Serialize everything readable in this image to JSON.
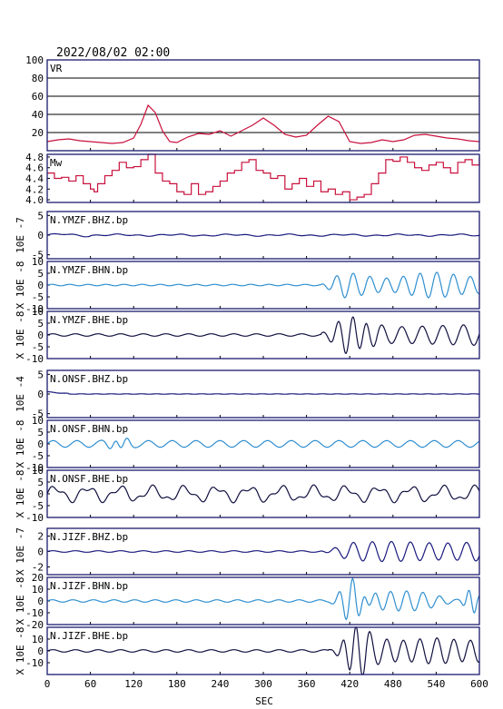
{
  "header": {
    "datetime": "2022/08/02 02:00"
  },
  "colors": {
    "vr": "#c8103c",
    "mw": "#c8103c",
    "bhz": "#1a1a7e",
    "bhn": "#2f8fd0",
    "bhe": "#101040",
    "grid": "#000000"
  },
  "chart_data": {
    "type": "line",
    "xlabel": "SEC",
    "xlim": [
      0,
      600
    ],
    "xticks": [
      0,
      60,
      120,
      180,
      240,
      300,
      360,
      420,
      480,
      540,
      600
    ],
    "panels": [
      {
        "id": "vr",
        "label": "VR",
        "ylabel": "",
        "ylim": [
          0,
          100
        ],
        "yticks": [
          20,
          40,
          60,
          80,
          100
        ],
        "grid": true,
        "color_key": "vr",
        "x": [
          0,
          15,
          30,
          45,
          60,
          75,
          90,
          105,
          120,
          130,
          140,
          150,
          160,
          170,
          180,
          195,
          210,
          225,
          240,
          255,
          270,
          285,
          300,
          315,
          330,
          345,
          360,
          375,
          390,
          405,
          420,
          435,
          450,
          465,
          480,
          495,
          510,
          525,
          540,
          555,
          570,
          585,
          600
        ],
        "y": [
          10,
          12,
          13,
          11,
          10,
          9,
          8,
          9,
          14,
          29,
          50,
          42,
          22,
          10,
          9,
          15,
          19,
          18,
          22,
          16,
          22,
          28,
          36,
          28,
          18,
          15,
          17,
          28,
          38,
          32,
          10,
          8,
          9,
          12,
          10,
          12,
          17,
          18,
          16,
          14,
          13,
          11,
          10
        ]
      },
      {
        "id": "mw",
        "label": "Mw",
        "ylabel": "",
        "ylim": [
          3.95,
          4.85
        ],
        "yticks": [
          4.0,
          4.2,
          4.4,
          4.6,
          4.8
        ],
        "grid": false,
        "color_key": "mw",
        "x": [
          0,
          10,
          20,
          30,
          40,
          50,
          60,
          65,
          70,
          80,
          90,
          100,
          110,
          120,
          130,
          140,
          150,
          160,
          170,
          180,
          190,
          200,
          210,
          220,
          230,
          240,
          250,
          260,
          270,
          280,
          290,
          300,
          310,
          320,
          330,
          340,
          350,
          360,
          370,
          380,
          390,
          400,
          410,
          420,
          430,
          440,
          450,
          460,
          470,
          480,
          490,
          500,
          510,
          520,
          530,
          540,
          550,
          560,
          570,
          580,
          590,
          600
        ],
        "y": [
          4.5,
          4.4,
          4.42,
          4.35,
          4.45,
          4.3,
          4.2,
          4.15,
          4.3,
          4.45,
          4.55,
          4.7,
          4.6,
          4.62,
          4.75,
          4.85,
          4.5,
          4.35,
          4.3,
          4.15,
          4.1,
          4.3,
          4.1,
          4.15,
          4.25,
          4.35,
          4.5,
          4.55,
          4.7,
          4.75,
          4.55,
          4.5,
          4.4,
          4.45,
          4.2,
          4.3,
          4.4,
          4.25,
          4.35,
          4.15,
          4.2,
          4.1,
          4.15,
          4.0,
          4.05,
          4.1,
          4.3,
          4.5,
          4.75,
          4.72,
          4.8,
          4.7,
          4.6,
          4.55,
          4.65,
          4.7,
          4.6,
          4.5,
          4.7,
          4.75,
          4.65,
          4.8
        ]
      },
      {
        "id": "ymzf-bhz",
        "label": "N.YMZF.BHZ.bp",
        "ylabel": "10E -7",
        "ylim": [
          -6,
          6
        ],
        "yticks": [
          -5,
          0,
          5
        ],
        "color_key": "bhz",
        "wave": "bhz-quiet"
      },
      {
        "id": "ymzf-bhn",
        "label": "N.YMZF.BHN.bp",
        "ylabel": "X 10E -8",
        "ylim": [
          -10,
          10
        ],
        "yticks": [
          -10,
          -5,
          0,
          5,
          10
        ],
        "color_key": "bhn",
        "wave": "ymzf-bhn"
      },
      {
        "id": "ymzf-bhe",
        "label": "N.YMZF.BHE.bp",
        "ylabel": "X 10E -8",
        "ylim": [
          -10,
          10
        ],
        "yticks": [
          -10,
          -5,
          0,
          5,
          10
        ],
        "color_key": "bhe",
        "wave": "ymzf-bhe"
      },
      {
        "id": "onsf-bhz",
        "label": "N.ONSF.BHZ.bp",
        "ylabel": "10E -4",
        "ylim": [
          -6,
          6
        ],
        "yticks": [
          -5,
          0,
          5
        ],
        "color_key": "bhz",
        "wave": "bhz-flat"
      },
      {
        "id": "onsf-bhn",
        "label": "N.ONSF.BHN.bp",
        "ylabel": "X 10E -8",
        "ylim": [
          -10,
          10
        ],
        "yticks": [
          -10,
          -5,
          0,
          5,
          10
        ],
        "color_key": "bhn",
        "wave": "onsf-bhn"
      },
      {
        "id": "onsf-bhe",
        "label": "N.ONSF.BHE.bp",
        "ylabel": "X 10E -8",
        "ylim": [
          -10,
          10
        ],
        "yticks": [
          -10,
          -5,
          0,
          5,
          10
        ],
        "color_key": "bhe",
        "wave": "onsf-bhe"
      },
      {
        "id": "jizf-bhz",
        "label": "N.JIZF.BHZ.bp",
        "ylabel": "X 10E -7",
        "ylim": [
          -3,
          3
        ],
        "yticks": [
          -2,
          0,
          2
        ],
        "color_key": "bhz",
        "wave": "jizf-bhz"
      },
      {
        "id": "jizf-bhn",
        "label": "N.JIZF.BHN.bp",
        "ylabel": "X 10E -8",
        "ylim": [
          -20,
          20
        ],
        "yticks": [
          -20,
          -10,
          0,
          10,
          20
        ],
        "color_key": "bhn",
        "wave": "jizf-bhn"
      },
      {
        "id": "jizf-bhe",
        "label": "N.JIZF.BHE.bp",
        "ylabel": "X 10E -8",
        "ylim": [
          -20,
          20
        ],
        "yticks": [
          -10,
          0,
          10
        ],
        "color_key": "bhe",
        "wave": "jizf-bhe"
      }
    ]
  }
}
